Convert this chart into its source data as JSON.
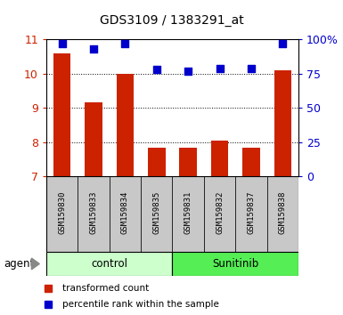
{
  "title": "GDS3109 / 1383291_at",
  "samples": [
    "GSM159830",
    "GSM159833",
    "GSM159834",
    "GSM159835",
    "GSM159831",
    "GSM159832",
    "GSM159837",
    "GSM159838"
  ],
  "bar_values": [
    10.6,
    9.15,
    10.0,
    7.85,
    7.85,
    8.05,
    7.85,
    10.1
  ],
  "dot_values": [
    97,
    93,
    97,
    78,
    77,
    79,
    79,
    97
  ],
  "groups": [
    {
      "label": "control",
      "start": 0,
      "end": 4,
      "color": "#ccffcc"
    },
    {
      "label": "Sunitinib",
      "start": 4,
      "end": 8,
      "color": "#55ee55"
    }
  ],
  "ylim_left": [
    7,
    11
  ],
  "ylim_right": [
    0,
    100
  ],
  "yticks_left": [
    7,
    8,
    9,
    10,
    11
  ],
  "yticks_right": [
    0,
    25,
    50,
    75,
    100
  ],
  "yticklabels_right": [
    "0",
    "25",
    "50",
    "75",
    "100%"
  ],
  "bar_color": "#cc2200",
  "dot_color": "#0000cc",
  "bar_bottom": 7,
  "legend_bar_label": "transformed count",
  "legend_dot_label": "percentile rank within the sample",
  "agent_label": "agent",
  "background_color": "#ffffff",
  "tick_label_color_left": "#cc2200",
  "tick_label_color_right": "#0000cc",
  "sample_box_color": "#c8c8c8",
  "bar_width": 0.55
}
